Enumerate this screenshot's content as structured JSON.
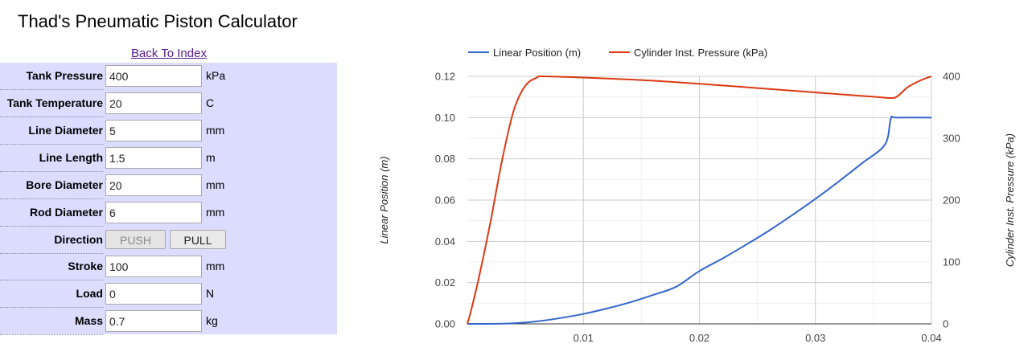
{
  "page": {
    "title": "Thad's Pneumatic Piston Calculator",
    "back_link": "Back To Index"
  },
  "form": {
    "rows": [
      {
        "label": "Tank Pressure",
        "value": "400",
        "unit": "kPa"
      },
      {
        "label": "Tank Temperature",
        "value": "20",
        "unit": "C"
      },
      {
        "label": "Line Diameter",
        "value": "5",
        "unit": "mm"
      },
      {
        "label": "Line Length",
        "value": "1.5",
        "unit": "m"
      },
      {
        "label": "Bore Diameter",
        "value": "20",
        "unit": "mm"
      },
      {
        "label": "Rod Diameter",
        "value": "6",
        "unit": "mm"
      }
    ],
    "direction": {
      "label": "Direction",
      "push_label": "PUSH",
      "pull_label": "PULL",
      "selected": "PUSH"
    },
    "rows2": [
      {
        "label": "Stroke",
        "value": "100",
        "unit": "mm"
      },
      {
        "label": "Load",
        "value": "0",
        "unit": "N"
      },
      {
        "label": "Mass",
        "value": "0.7",
        "unit": "kg"
      }
    ]
  },
  "chart_data": {
    "type": "line",
    "title": "",
    "xlabel": "",
    "ylabel": "Linear Position (m)",
    "y2label": "Cylinder Inst. Pressure (kPa)",
    "xlim": [
      0,
      0.04
    ],
    "ylim": [
      0,
      0.12
    ],
    "y2lim": [
      0,
      400
    ],
    "x_ticks": [
      "0.01",
      "0.02",
      "0.03",
      "0.04"
    ],
    "y_ticks": [
      "0.00",
      "0.02",
      "0.04",
      "0.06",
      "0.08",
      "0.10",
      "0.12"
    ],
    "y2_ticks": [
      "0",
      "100",
      "200",
      "300",
      "400"
    ],
    "grid": true,
    "legend_position": "top",
    "series": [
      {
        "name": "Linear Position (m)",
        "axis": "left",
        "color": "#3366cc",
        "x": [
          0,
          0.002,
          0.004,
          0.006,
          0.008,
          0.01,
          0.012,
          0.014,
          0.016,
          0.018,
          0.02,
          0.022,
          0.024,
          0.026,
          0.028,
          0.03,
          0.032,
          0.034,
          0.036,
          0.0365,
          0.037,
          0.04
        ],
        "y": [
          0,
          0,
          0.0003,
          0.0012,
          0.0028,
          0.0048,
          0.0074,
          0.0104,
          0.014,
          0.018,
          0.0256,
          0.0317,
          0.0383,
          0.0452,
          0.0527,
          0.0606,
          0.069,
          0.0778,
          0.087,
          0.0995,
          0.1,
          0.1
        ]
      },
      {
        "name": "Cylinder Inst. Pressure (kPa)",
        "axis": "right",
        "color": "#dc3912",
        "x": [
          0,
          0.0003,
          0.001,
          0.002,
          0.003,
          0.004,
          0.005,
          0.006,
          0.0065,
          0.01,
          0.015,
          0.02,
          0.025,
          0.03,
          0.035,
          0.0365,
          0.037,
          0.0375,
          0.038,
          0.039,
          0.04
        ],
        "y": [
          0,
          20,
          75,
          165,
          265,
          345,
          385,
          398,
          400,
          398,
          394,
          388,
          381,
          374,
          367,
          365,
          367,
          375,
          383,
          393,
          400
        ]
      }
    ]
  }
}
